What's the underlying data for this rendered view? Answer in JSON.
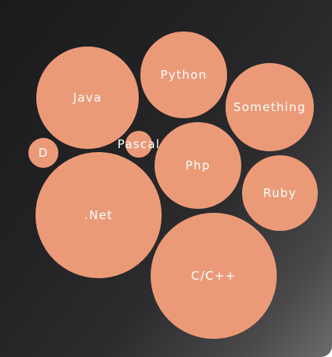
{
  "colors": {
    "bubble": "#eb9a78",
    "label": "#ffffff"
  },
  "chart_data": {
    "type": "bubble",
    "title": "",
    "series": [
      {
        "name": "",
        "items": [
          {
            "label": "Java",
            "value": 65
          },
          {
            "label": "Python",
            "value": 55
          },
          {
            "label": "Something",
            "value": 56
          },
          {
            "label": "D",
            "value": 19
          },
          {
            "label": "Pascal",
            "value": 17
          },
          {
            "label": "Php",
            "value": 55
          },
          {
            "label": "Ruby",
            "value": 48
          },
          {
            "label": ".Net",
            "value": 80
          },
          {
            "label": "C/C++",
            "value": 80
          }
        ]
      }
    ]
  }
}
